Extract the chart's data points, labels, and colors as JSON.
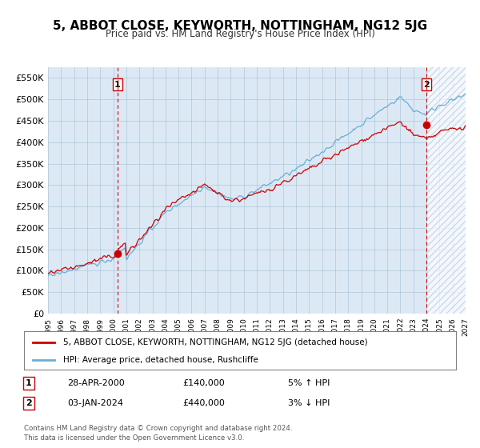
{
  "title": "5, ABBOT CLOSE, KEYWORTH, NOTTINGHAM, NG12 5JG",
  "subtitle": "Price paid vs. HM Land Registry's House Price Index (HPI)",
  "bg_color": "#dce9f5",
  "plot_bg_color": "#dce9f5",
  "hatch_color": "#b8cfe0",
  "grid_color": "#aec6d8",
  "red_line_color": "#cc0000",
  "blue_line_color": "#6aaed6",
  "marker_color": "#cc0000",
  "ylim": [
    0,
    575000
  ],
  "yticks": [
    0,
    50000,
    100000,
    150000,
    200000,
    250000,
    300000,
    350000,
    400000,
    450000,
    500000,
    550000
  ],
  "ytick_labels": [
    "£0",
    "£50K",
    "£100K",
    "£150K",
    "£200K",
    "£250K",
    "£300K",
    "£350K",
    "£400K",
    "£450K",
    "£500K",
    "£550K"
  ],
  "year_start": 1995,
  "year_end": 2027,
  "xtick_years": [
    1995,
    1996,
    1997,
    1998,
    1999,
    2000,
    2001,
    2002,
    2003,
    2004,
    2005,
    2006,
    2007,
    2008,
    2009,
    2010,
    2011,
    2012,
    2013,
    2014,
    2015,
    2016,
    2017,
    2018,
    2019,
    2020,
    2021,
    2022,
    2023,
    2024,
    2025,
    2026,
    2027
  ],
  "annotation1_year": 2000.33,
  "annotation1_label": "1",
  "annotation1_price": 140000,
  "annotation1_date": "28-APR-2000",
  "annotation1_pct": "5% ↑ HPI",
  "annotation2_year": 2024.0,
  "annotation2_label": "2",
  "annotation2_price": 440000,
  "annotation2_date": "03-JAN-2024",
  "annotation2_pct": "3% ↓ HPI",
  "legend_label1": "5, ABBOT CLOSE, KEYWORTH, NOTTINGHAM, NG12 5JG (detached house)",
  "legend_label2": "HPI: Average price, detached house, Rushcliffe",
  "footer1": "Contains HM Land Registry data © Crown copyright and database right 2024.",
  "footer2": "This data is licensed under the Open Government Licence v3.0.",
  "table_row1": [
    "1",
    "28-APR-2000",
    "£140,000",
    "5% ↑ HPI"
  ],
  "table_row2": [
    "2",
    "03-JAN-2024",
    "£440,000",
    "3% ↓ HPI"
  ]
}
